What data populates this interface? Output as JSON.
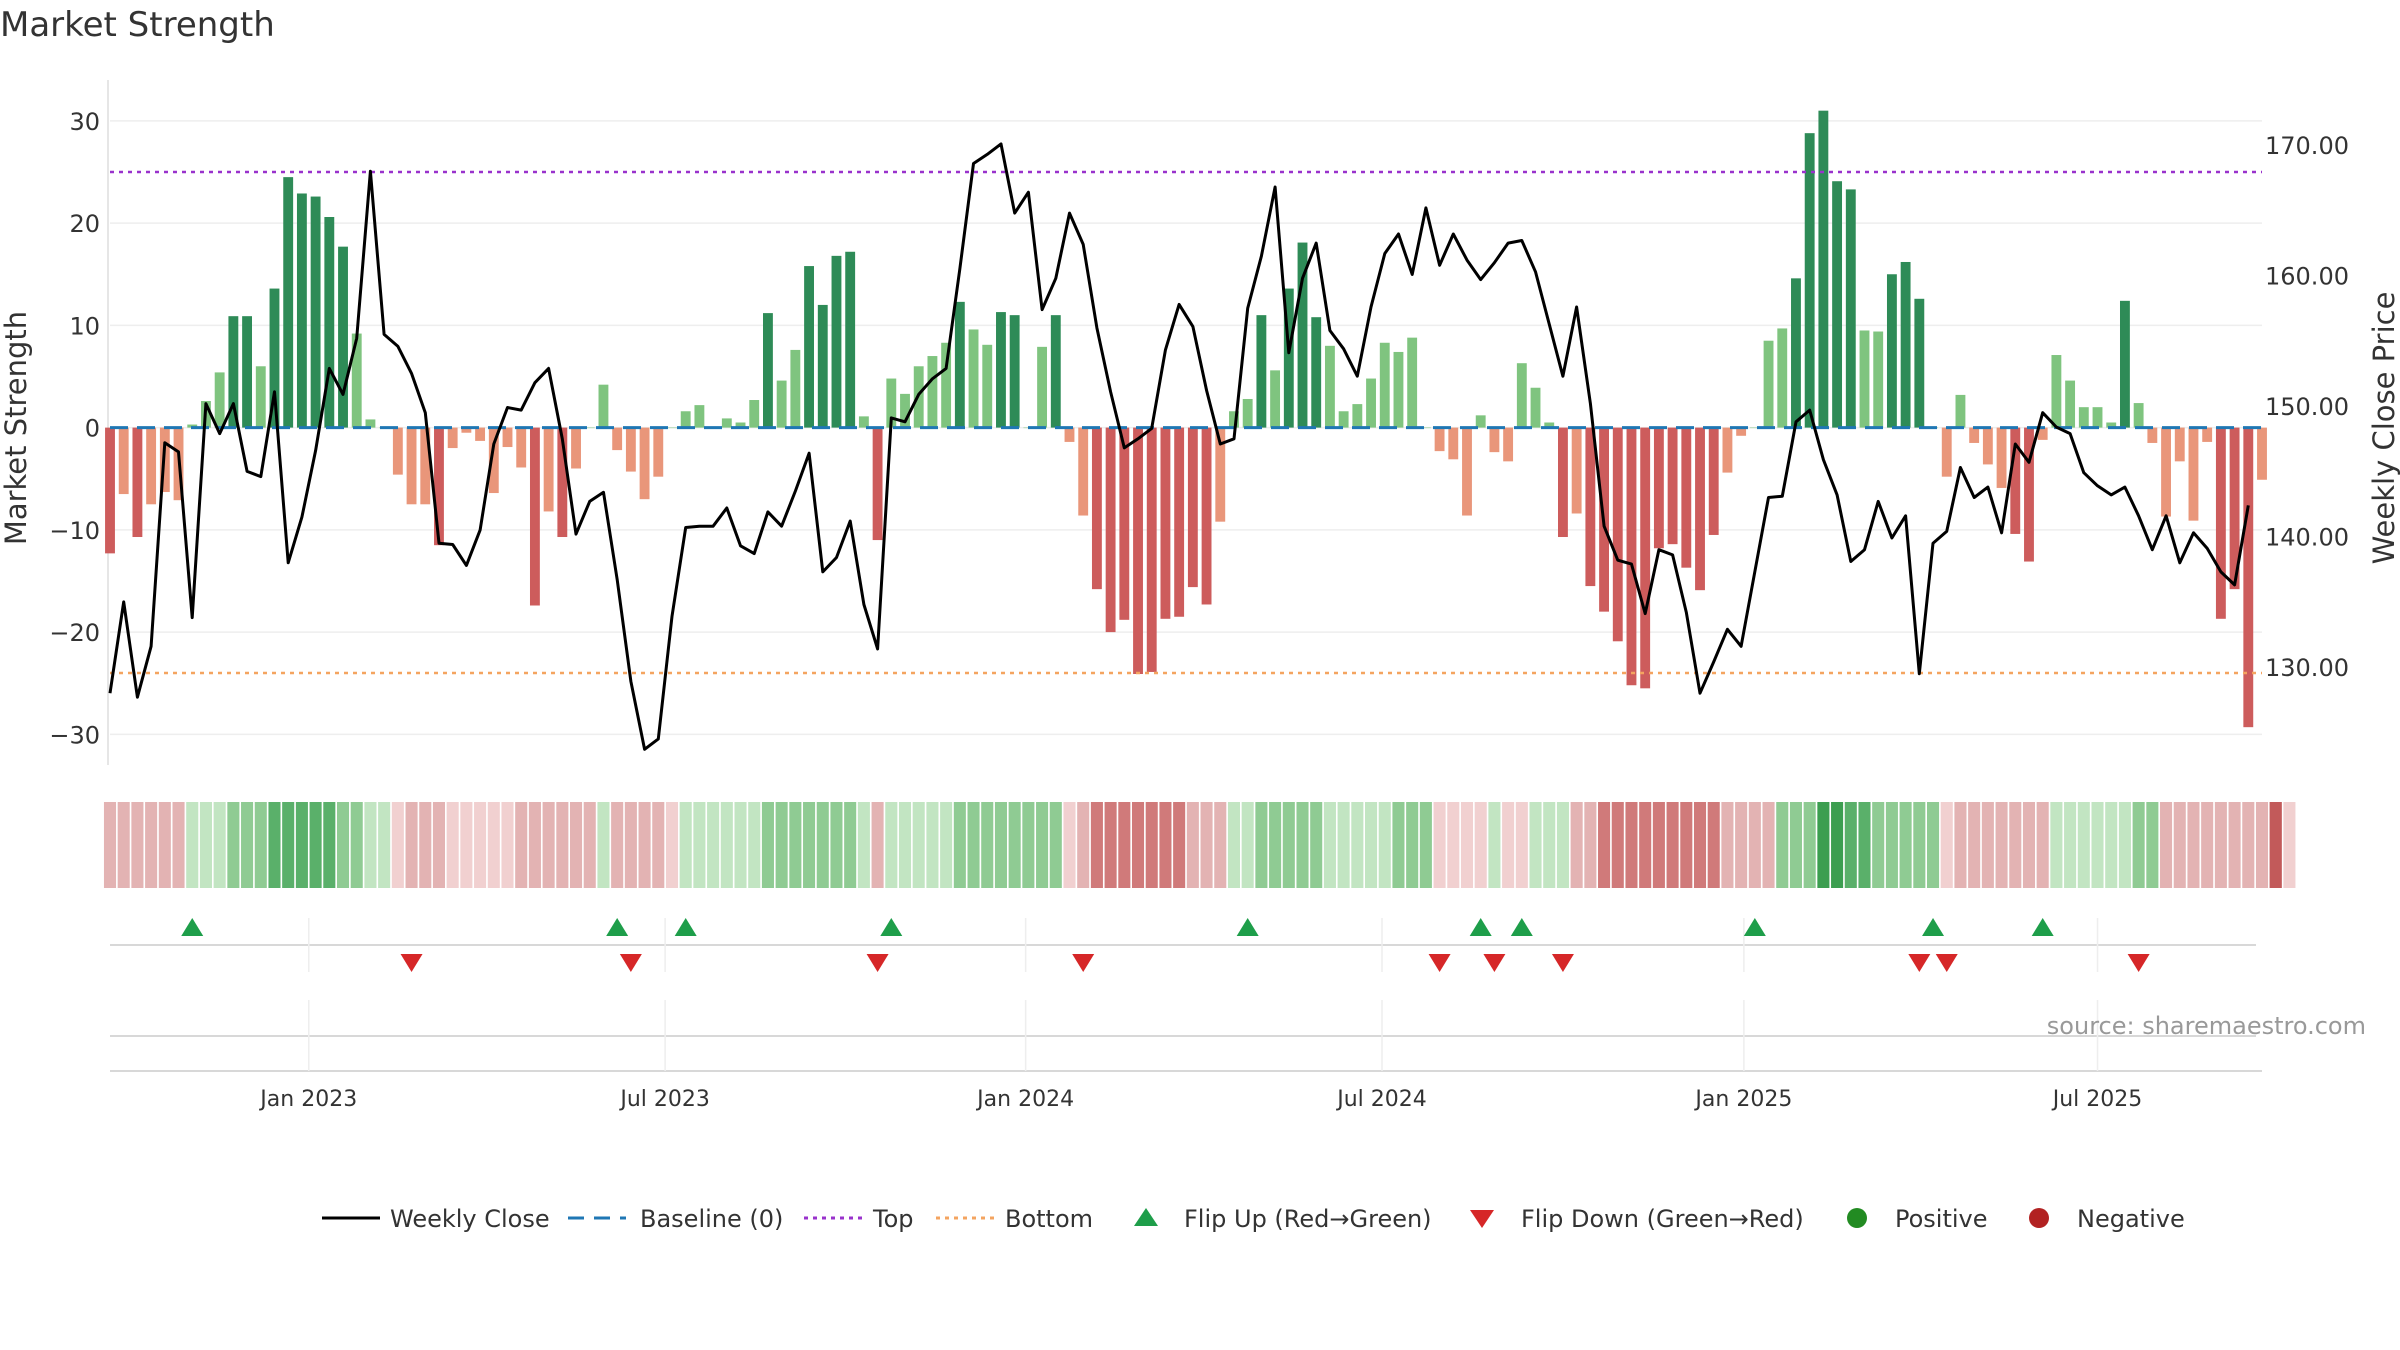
{
  "chart_data": {
    "type": "bar",
    "title": "Market Strength",
    "ylabel": "Market Strength",
    "y2label": "Weekly Close Price",
    "ylim": [
      -33,
      34
    ],
    "y2lim": [
      122.5,
      175
    ],
    "yticks": [
      30,
      20,
      10,
      0,
      -10,
      -20,
      -30
    ],
    "ytick_labels": [
      "30",
      "20",
      "10",
      "0",
      "−10",
      "−20",
      "−30"
    ],
    "y2ticks": [
      170,
      160,
      150,
      140,
      130
    ],
    "y2tick_labels": [
      "170.00",
      "160.00",
      "150.00",
      "140.00",
      "130.00"
    ],
    "x_range_weeks": [
      0,
      157
    ],
    "x_ticks": [
      {
        "label": "Jan 2023",
        "week": 14.5
      },
      {
        "label": "Jul 2023",
        "week": 40.5
      },
      {
        "label": "Jan 2024",
        "week": 66.8
      },
      {
        "label": "Jul 2024",
        "week": 92.8
      },
      {
        "label": "Jan 2025",
        "week": 119.2
      },
      {
        "label": "Jul 2025",
        "week": 145.0
      }
    ],
    "top_level": 25,
    "bottom_level": -24,
    "strength_values": [
      -12.3,
      -6.5,
      -10.7,
      -7.5,
      -6.3,
      -7.1,
      0.3,
      2.6,
      5.4,
      10.9,
      10.9,
      6.0,
      13.6,
      24.5,
      22.9,
      22.6,
      20.6,
      17.7,
      9.2,
      0.8,
      0,
      -4.6,
      -7.5,
      -7.5,
      -11.5,
      -2.0,
      -0.5,
      -1.3,
      -6.4,
      -1.9,
      -3.9,
      -17.4,
      -8.2,
      -10.7,
      -4.0,
      0,
      4.2,
      -2.2,
      -4.3,
      -7.0,
      -4.8,
      0,
      1.6,
      2.2,
      0,
      0.9,
      0.5,
      2.7,
      11.2,
      4.6,
      7.6,
      15.8,
      12.0,
      16.8,
      17.2,
      1.1,
      -11.0,
      4.8,
      3.3,
      6.0,
      7.0,
      8.3,
      12.3,
      9.6,
      8.1,
      11.3,
      11.0,
      0,
      7.9,
      11.0,
      -1.4,
      -8.6,
      -15.8,
      -20.0,
      -18.8,
      -24.1,
      -23.9,
      -18.7,
      -18.5,
      -15.6,
      -17.3,
      -9.2,
      1.6,
      2.8,
      11.0,
      5.6,
      13.6,
      18.1,
      10.8,
      8.0,
      1.6,
      2.3,
      4.8,
      8.3,
      7.4,
      8.8,
      0,
      -2.3,
      -3.1,
      -8.6,
      1.2,
      -2.4,
      -3.3,
      6.3,
      3.9,
      0.5,
      -10.7,
      -8.4,
      -15.5,
      -18.0,
      -20.9,
      -25.2,
      -25.5,
      -11.8,
      -11.4,
      -13.7,
      -15.9,
      -10.5,
      -4.4,
      -0.8,
      0,
      8.5,
      9.7,
      14.6,
      28.8,
      31.0,
      24.1,
      23.3,
      9.5,
      9.4,
      15.0,
      16.2,
      12.6,
      0,
      -4.8,
      3.2,
      -1.5,
      -3.6,
      -5.9,
      -10.4,
      -13.1,
      -1.2,
      7.1,
      4.6,
      2.0,
      2.0,
      0.5,
      12.4,
      2.4,
      -1.5,
      -8.7,
      -3.3,
      -9.1,
      -1.4,
      -18.7,
      -15.8,
      -29.3,
      -5.1
    ],
    "weekly_close": [
      128,
      135,
      127.7,
      131.6,
      147.2,
      146.5,
      133.8,
      150.2,
      147.9,
      150.2,
      145,
      144.6,
      151.1,
      138,
      141.5,
      146.6,
      152.9,
      150.9,
      155.2,
      168,
      155.5,
      154.6,
      152.5,
      149.5,
      139.5,
      139.4,
      137.8,
      140.5,
      147.1,
      149.9,
      149.7,
      151.8,
      152.9,
      147.5,
      140.2,
      142.7,
      143.4,
      136.7,
      128.9,
      123.7,
      124.5,
      133.9,
      140.7,
      140.8,
      140.8,
      142.2,
      139.3,
      138.7,
      141.9,
      140.8,
      143.5,
      146.4,
      137.3,
      138.4,
      141.2,
      134.8,
      131.4,
      149.1,
      148.8,
      150.9,
      152.1,
      152.9,
      160.5,
      168.6,
      169.3,
      170.1,
      164.8,
      166.4,
      157.4,
      159.8,
      164.8,
      162.4,
      156,
      151.1,
      146.8,
      147.5,
      148.3,
      154.3,
      157.8,
      156.1,
      151.2,
      147.1,
      147.5,
      157.5,
      161.5,
      166.8,
      154.1,
      159.8,
      162.5,
      155.8,
      154.4,
      152.3,
      157.6,
      161.7,
      163.2,
      160.1,
      165.2,
      160.8,
      163.2,
      161.2,
      159.7,
      161,
      162.5,
      162.7,
      160.3,
      156.3,
      152.3,
      157.6,
      150.2,
      140.8,
      138.2,
      137.9,
      134.1,
      139,
      138.6,
      134.2,
      128,
      130.4,
      132.9,
      131.6,
      137.3,
      143,
      143.1,
      148.8,
      149.7,
      145.9,
      143.2,
      138.1,
      139,
      142.7,
      139.9,
      141.6,
      129.5,
      139.5,
      140.4,
      145.3,
      143,
      143.8,
      140.3,
      147.1,
      145.7,
      149.5,
      148.4,
      147.9,
      144.9,
      143.9,
      143.2,
      143.8,
      141.6,
      139,
      141.6,
      138,
      140.3,
      139.1,
      137.3,
      136.3,
      142.4
    ],
    "state_intensity": [
      -2,
      -2,
      -2,
      -2,
      -2,
      -2,
      1,
      1,
      1,
      2,
      2,
      2,
      3,
      3,
      3,
      3,
      3,
      2,
      2,
      1,
      1,
      -1,
      -2,
      -2,
      -2,
      -1,
      -1,
      -1,
      -1,
      -1,
      -2,
      -2,
      -2,
      -2,
      -2,
      -2,
      1,
      -2,
      -2,
      -2,
      -2,
      -1,
      1,
      1,
      1,
      1,
      1,
      1,
      2,
      2,
      2,
      2,
      2,
      2,
      2,
      1,
      -2,
      1,
      1,
      1,
      1,
      1,
      2,
      2,
      2,
      2,
      2,
      2,
      2,
      2,
      -1,
      -2,
      -3,
      -3,
      -3,
      -3,
      -3,
      -3,
      -3,
      -2,
      -2,
      -2,
      1,
      1,
      2,
      2,
      2,
      2,
      2,
      1,
      1,
      1,
      1,
      1,
      2,
      2,
      2,
      -1,
      -1,
      -1,
      -1,
      1,
      -1,
      -1,
      1,
      1,
      1,
      -2,
      -2,
      -3,
      -3,
      -3,
      -3,
      -3,
      -3,
      -3,
      -3,
      -3,
      -2,
      -2,
      -2,
      -2,
      2,
      2,
      2,
      4,
      4,
      3,
      3,
      2,
      2,
      2,
      2,
      2,
      -1,
      -2,
      -2,
      -2,
      -2,
      -2,
      -2,
      -2,
      1,
      1,
      1,
      1,
      1,
      1,
      2,
      2,
      -2,
      -2,
      -2,
      -2,
      -2,
      -2,
      -2,
      -2,
      -3,
      -1
    ],
    "flip_up_weeks": [
      6,
      37,
      42,
      57,
      83,
      100,
      103,
      120,
      133,
      141
    ],
    "flip_down_weeks": [
      22,
      38,
      56,
      71,
      97,
      101,
      106,
      132,
      134,
      148
    ],
    "source_text": "source: sharemaestro.com",
    "legend": [
      {
        "label": "Weekly Close",
        "kind": "line"
      },
      {
        "label": "Baseline (0)",
        "kind": "dash"
      },
      {
        "label": "Top",
        "kind": "dot-purple"
      },
      {
        "label": "Bottom",
        "kind": "dot-orange"
      },
      {
        "label": "Flip Up (Red→Green)",
        "kind": "tri-up"
      },
      {
        "label": "Flip Down (Green→Red)",
        "kind": "tri-down"
      },
      {
        "label": "Positive",
        "kind": "circle-green"
      },
      {
        "label": "Negative",
        "kind": "circle-red"
      }
    ],
    "colors": {
      "strong_pos": "#2e8b57",
      "weak_pos": "#7fc47f",
      "strong_neg": "#cd5c5c",
      "weak_neg": "#e9967a",
      "close_line": "#000000",
      "baseline": "#1f77b4",
      "top_line": "#9932cc",
      "bottom_line": "#f4a460",
      "flip_up": "#1e9e4a",
      "flip_down": "#d62728",
      "positive": "#228b22",
      "negative": "#b22222"
    }
  }
}
